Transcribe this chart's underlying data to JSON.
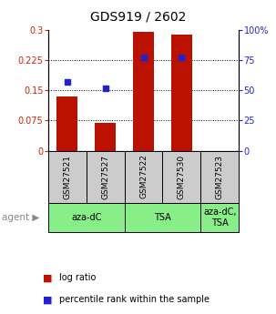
{
  "title": "GDS919 / 2602",
  "samples": [
    "GSM27521",
    "GSM27527",
    "GSM27522",
    "GSM27530",
    "GSM27523"
  ],
  "log_ratio": [
    0.135,
    0.068,
    0.295,
    0.288,
    0.0
  ],
  "percentile_rank": [
    57,
    52,
    77,
    77,
    0
  ],
  "ylim_left": [
    0,
    0.3
  ],
  "ylim_right": [
    0,
    100
  ],
  "yticks_left": [
    0,
    0.075,
    0.15,
    0.225,
    0.3
  ],
  "yticks_right": [
    0,
    25,
    50,
    75,
    100
  ],
  "ytick_labels_left": [
    "0",
    "0.075",
    "0.15",
    "0.225",
    "0.3"
  ],
  "ytick_labels_right": [
    "0",
    "25",
    "50",
    "75",
    "100%"
  ],
  "hlines": [
    0.075,
    0.15,
    0.225
  ],
  "bar_color": "#bb1100",
  "dot_color": "#2222cc",
  "agent_labels": [
    "aza-dC",
    "TSA",
    "aza-dC,\nTSA"
  ],
  "agent_groups": [
    [
      0,
      1
    ],
    [
      2,
      3
    ],
    [
      4
    ]
  ],
  "agent_bg_color": "#88ee88",
  "sample_bg_color": "#cccccc",
  "legend_items": [
    {
      "color": "#bb1100",
      "label": "log ratio"
    },
    {
      "color": "#2222cc",
      "label": "percentile rank within the sample"
    }
  ]
}
